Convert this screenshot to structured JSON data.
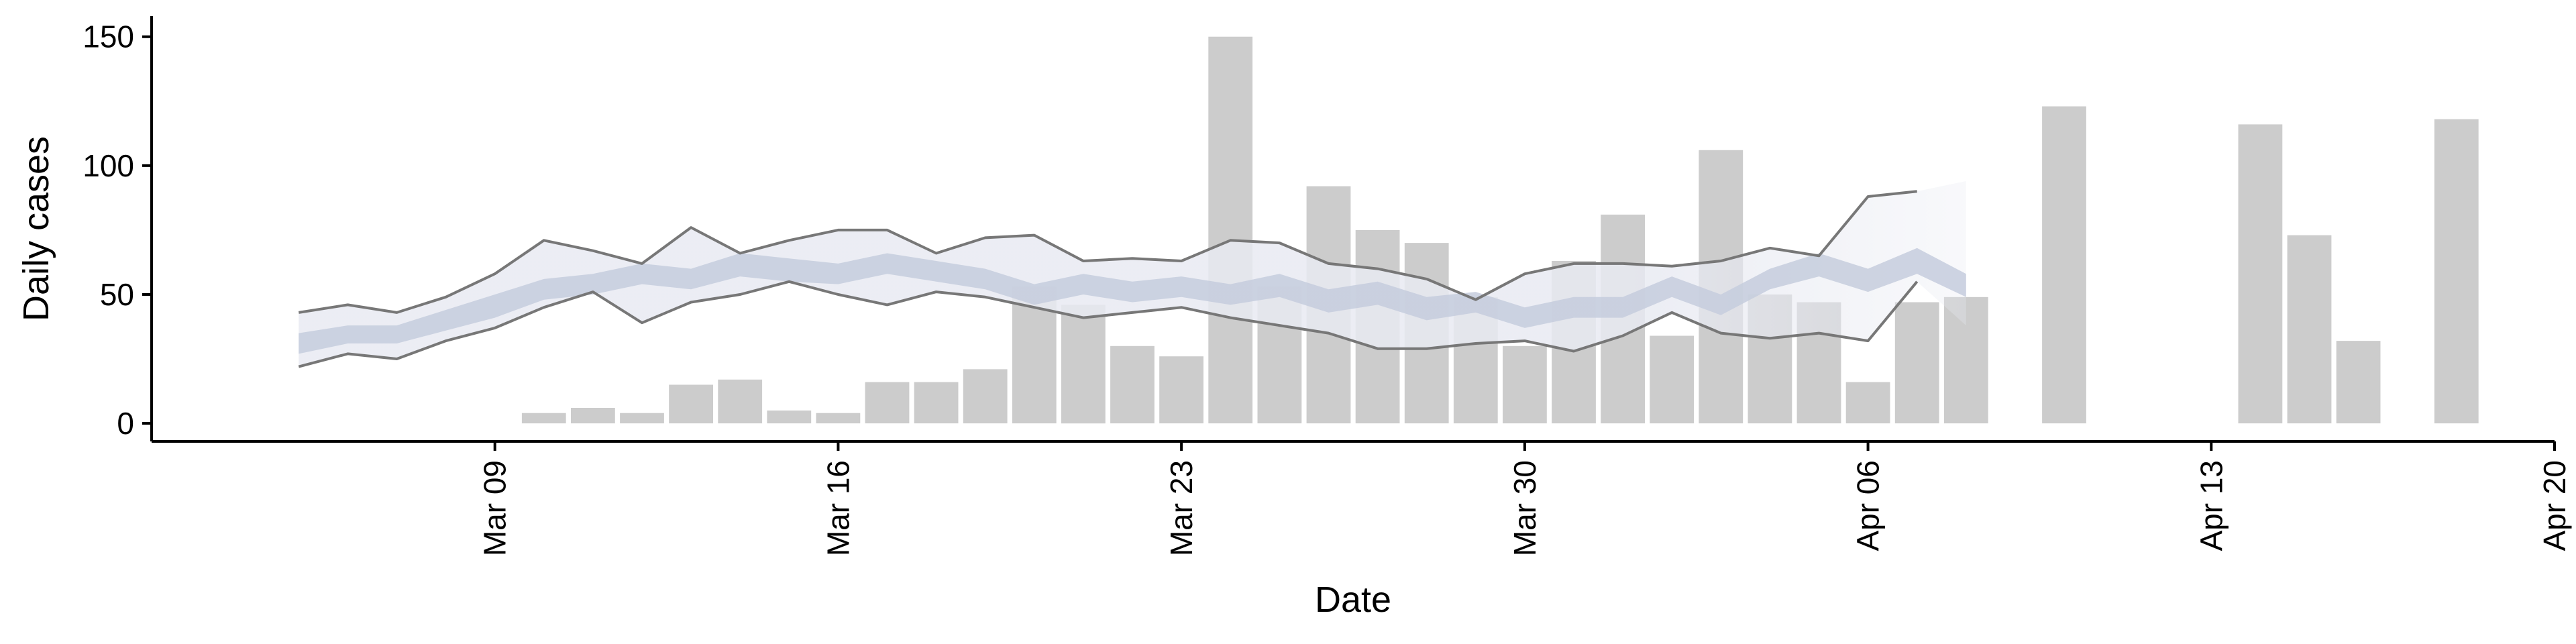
{
  "chart_data": {
    "type": "bar",
    "title": "",
    "xlabel": "Date",
    "ylabel": "Daily cases",
    "x_axis": {
      "type": "date",
      "range": [
        "2020-03-02",
        "2020-04-20"
      ],
      "ticks": [
        {
          "date": "2020-03-09",
          "label": "Mar 09"
        },
        {
          "date": "2020-03-16",
          "label": "Mar 16"
        },
        {
          "date": "2020-03-23",
          "label": "Mar 23"
        },
        {
          "date": "2020-03-30",
          "label": "Mar 30"
        },
        {
          "date": "2020-04-06",
          "label": "Apr 06"
        },
        {
          "date": "2020-04-13",
          "label": "Apr 13"
        },
        {
          "date": "2020-04-20",
          "label": "Apr 20"
        }
      ]
    },
    "y_axis": {
      "range": [
        -7,
        158
      ],
      "ticks": [
        0,
        50,
        100,
        150
      ]
    },
    "grid": false,
    "legend": "none",
    "colors": {
      "bars": "#cccccc",
      "outer_band": "#e8eaf2",
      "inner_band": "#c6ccdd",
      "bound_lines": "#777777",
      "axis": "#000000"
    },
    "bars": [
      {
        "date": "2020-03-10",
        "value": 4
      },
      {
        "date": "2020-03-11",
        "value": 6
      },
      {
        "date": "2020-03-12",
        "value": 4
      },
      {
        "date": "2020-03-13",
        "value": 15
      },
      {
        "date": "2020-03-14",
        "value": 17
      },
      {
        "date": "2020-03-15",
        "value": 5
      },
      {
        "date": "2020-03-16",
        "value": 4
      },
      {
        "date": "2020-03-17",
        "value": 16
      },
      {
        "date": "2020-03-18",
        "value": 16
      },
      {
        "date": "2020-03-19",
        "value": 21
      },
      {
        "date": "2020-03-20",
        "value": 53
      },
      {
        "date": "2020-03-21",
        "value": 46
      },
      {
        "date": "2020-03-22",
        "value": 30
      },
      {
        "date": "2020-03-23",
        "value": 26
      },
      {
        "date": "2020-03-24",
        "value": 150
      },
      {
        "date": "2020-03-25",
        "value": 53
      },
      {
        "date": "2020-03-26",
        "value": 92
      },
      {
        "date": "2020-03-27",
        "value": 75
      },
      {
        "date": "2020-03-28",
        "value": 70
      },
      {
        "date": "2020-03-29",
        "value": 49
      },
      {
        "date": "2020-03-30",
        "value": 30
      },
      {
        "date": "2020-03-31",
        "value": 63
      },
      {
        "date": "2020-04-01",
        "value": 81
      },
      {
        "date": "2020-04-02",
        "value": 34
      },
      {
        "date": "2020-04-03",
        "value": 106
      },
      {
        "date": "2020-04-04",
        "value": 50
      },
      {
        "date": "2020-04-05",
        "value": 47
      },
      {
        "date": "2020-04-06",
        "value": 16
      },
      {
        "date": "2020-04-07",
        "value": 47
      },
      {
        "date": "2020-04-08",
        "value": 49
      },
      {
        "date": "2020-04-10",
        "value": 123
      },
      {
        "date": "2020-04-14",
        "value": 116
      },
      {
        "date": "2020-04-15",
        "value": 73
      },
      {
        "date": "2020-04-16",
        "value": 32
      },
      {
        "date": "2020-04-18",
        "value": 118
      }
    ],
    "band": [
      {
        "date": "2020-03-05",
        "outer_low": 22,
        "outer_high": 43,
        "inner_low": 27,
        "inner_high": 35,
        "line_low": 22,
        "line_high": 43
      },
      {
        "date": "2020-03-06",
        "outer_low": 27,
        "outer_high": 46,
        "inner_low": 31,
        "inner_high": 38,
        "line_low": 27,
        "line_high": 46
      },
      {
        "date": "2020-03-07",
        "outer_low": 25,
        "outer_high": 43,
        "inner_low": 31,
        "inner_high": 38,
        "line_low": 25,
        "line_high": 43
      },
      {
        "date": "2020-03-08",
        "outer_low": 32,
        "outer_high": 49,
        "inner_low": 36,
        "inner_high": 44,
        "line_low": 32,
        "line_high": 49
      },
      {
        "date": "2020-03-09",
        "outer_low": 37,
        "outer_high": 58,
        "inner_low": 41,
        "inner_high": 50,
        "line_low": 37,
        "line_high": 58
      },
      {
        "date": "2020-03-10",
        "outer_low": 45,
        "outer_high": 71,
        "inner_low": 48,
        "inner_high": 56,
        "line_low": 45,
        "line_high": 71
      },
      {
        "date": "2020-03-11",
        "outer_low": 51,
        "outer_high": 67,
        "inner_low": 50,
        "inner_high": 58,
        "line_low": 51,
        "line_high": 67
      },
      {
        "date": "2020-03-12",
        "outer_low": 39,
        "outer_high": 62,
        "inner_low": 54,
        "inner_high": 62,
        "line_low": 39,
        "line_high": 62
      },
      {
        "date": "2020-03-13",
        "outer_low": 47,
        "outer_high": 76,
        "inner_low": 52,
        "inner_high": 60,
        "line_low": 47,
        "line_high": 76
      },
      {
        "date": "2020-03-14",
        "outer_low": 50,
        "outer_high": 66,
        "inner_low": 57,
        "inner_high": 66,
        "line_low": 50,
        "line_high": 66
      },
      {
        "date": "2020-03-15",
        "outer_low": 55,
        "outer_high": 71,
        "inner_low": 55,
        "inner_high": 64,
        "line_low": 55,
        "line_high": 71
      },
      {
        "date": "2020-03-16",
        "outer_low": 50,
        "outer_high": 75,
        "inner_low": 54,
        "inner_high": 62,
        "line_low": 50,
        "line_high": 75
      },
      {
        "date": "2020-03-17",
        "outer_low": 46,
        "outer_high": 75,
        "inner_low": 58,
        "inner_high": 66,
        "line_low": 46,
        "line_high": 75
      },
      {
        "date": "2020-03-18",
        "outer_low": 51,
        "outer_high": 66,
        "inner_low": 55,
        "inner_high": 63,
        "line_low": 51,
        "line_high": 66
      },
      {
        "date": "2020-03-19",
        "outer_low": 49,
        "outer_high": 72,
        "inner_low": 52,
        "inner_high": 60,
        "line_low": 49,
        "line_high": 72
      },
      {
        "date": "2020-03-20",
        "outer_low": 45,
        "outer_high": 73,
        "inner_low": 46,
        "inner_high": 54,
        "line_low": 45,
        "line_high": 73
      },
      {
        "date": "2020-03-21",
        "outer_low": 41,
        "outer_high": 63,
        "inner_low": 50,
        "inner_high": 58,
        "line_low": 41,
        "line_high": 63
      },
      {
        "date": "2020-03-22",
        "outer_low": 43,
        "outer_high": 64,
        "inner_low": 47,
        "inner_high": 55,
        "line_low": 43,
        "line_high": 64
      },
      {
        "date": "2020-03-23",
        "outer_low": 45,
        "outer_high": 63,
        "inner_low": 49,
        "inner_high": 57,
        "line_low": 45,
        "line_high": 63
      },
      {
        "date": "2020-03-24",
        "outer_low": 41,
        "outer_high": 71,
        "inner_low": 46,
        "inner_high": 54,
        "line_low": 41,
        "line_high": 71
      },
      {
        "date": "2020-03-25",
        "outer_low": 38,
        "outer_high": 70,
        "inner_low": 49,
        "inner_high": 58,
        "line_low": 38,
        "line_high": 70
      },
      {
        "date": "2020-03-26",
        "outer_low": 35,
        "outer_high": 62,
        "inner_low": 43,
        "inner_high": 52,
        "line_low": 35,
        "line_high": 62
      },
      {
        "date": "2020-03-27",
        "outer_low": 29,
        "outer_high": 60,
        "inner_low": 46,
        "inner_high": 55,
        "line_low": 29,
        "line_high": 60
      },
      {
        "date": "2020-03-28",
        "outer_low": 29,
        "outer_high": 56,
        "inner_low": 40,
        "inner_high": 49,
        "line_low": 29,
        "line_high": 56
      },
      {
        "date": "2020-03-29",
        "outer_low": 31,
        "outer_high": 48,
        "inner_low": 43,
        "inner_high": 51,
        "line_low": 31,
        "line_high": 48
      },
      {
        "date": "2020-03-30",
        "outer_low": 32,
        "outer_high": 58,
        "inner_low": 37,
        "inner_high": 45,
        "line_low": 32,
        "line_high": 58
      },
      {
        "date": "2020-03-31",
        "outer_low": 28,
        "outer_high": 62,
        "inner_low": 41,
        "inner_high": 49,
        "line_low": 28,
        "line_high": 62
      },
      {
        "date": "2020-04-01",
        "outer_low": 34,
        "outer_high": 62,
        "inner_low": 41,
        "inner_high": 49,
        "line_low": 34,
        "line_high": 62
      },
      {
        "date": "2020-04-02",
        "outer_low": 43,
        "outer_high": 61,
        "inner_low": 49,
        "inner_high": 57,
        "line_low": 43,
        "line_high": 61
      },
      {
        "date": "2020-04-03",
        "outer_low": 35,
        "outer_high": 63,
        "inner_low": 42,
        "inner_high": 50,
        "line_low": 35,
        "line_high": 63
      },
      {
        "date": "2020-04-04",
        "outer_low": 33,
        "outer_high": 68,
        "inner_low": 52,
        "inner_high": 60,
        "line_low": 33,
        "line_high": 68
      },
      {
        "date": "2020-04-05",
        "outer_low": 35,
        "outer_high": 65,
        "inner_low": 57,
        "inner_high": 66,
        "line_low": 35,
        "line_high": 65
      },
      {
        "date": "2020-04-06",
        "outer_low": 32,
        "outer_high": 88,
        "inner_low": 51,
        "inner_high": 60,
        "line_low": 32,
        "line_high": 88
      },
      {
        "date": "2020-04-07",
        "outer_low": 55,
        "outer_high": 90,
        "inner_low": 58,
        "inner_high": 68,
        "line_low": 55,
        "line_high": 90
      },
      {
        "date": "2020-04-08",
        "outer_low": 38,
        "outer_high": 94,
        "inner_low": 49,
        "inner_high": 58,
        "line_low": 38,
        "line_high": 94
      }
    ]
  }
}
